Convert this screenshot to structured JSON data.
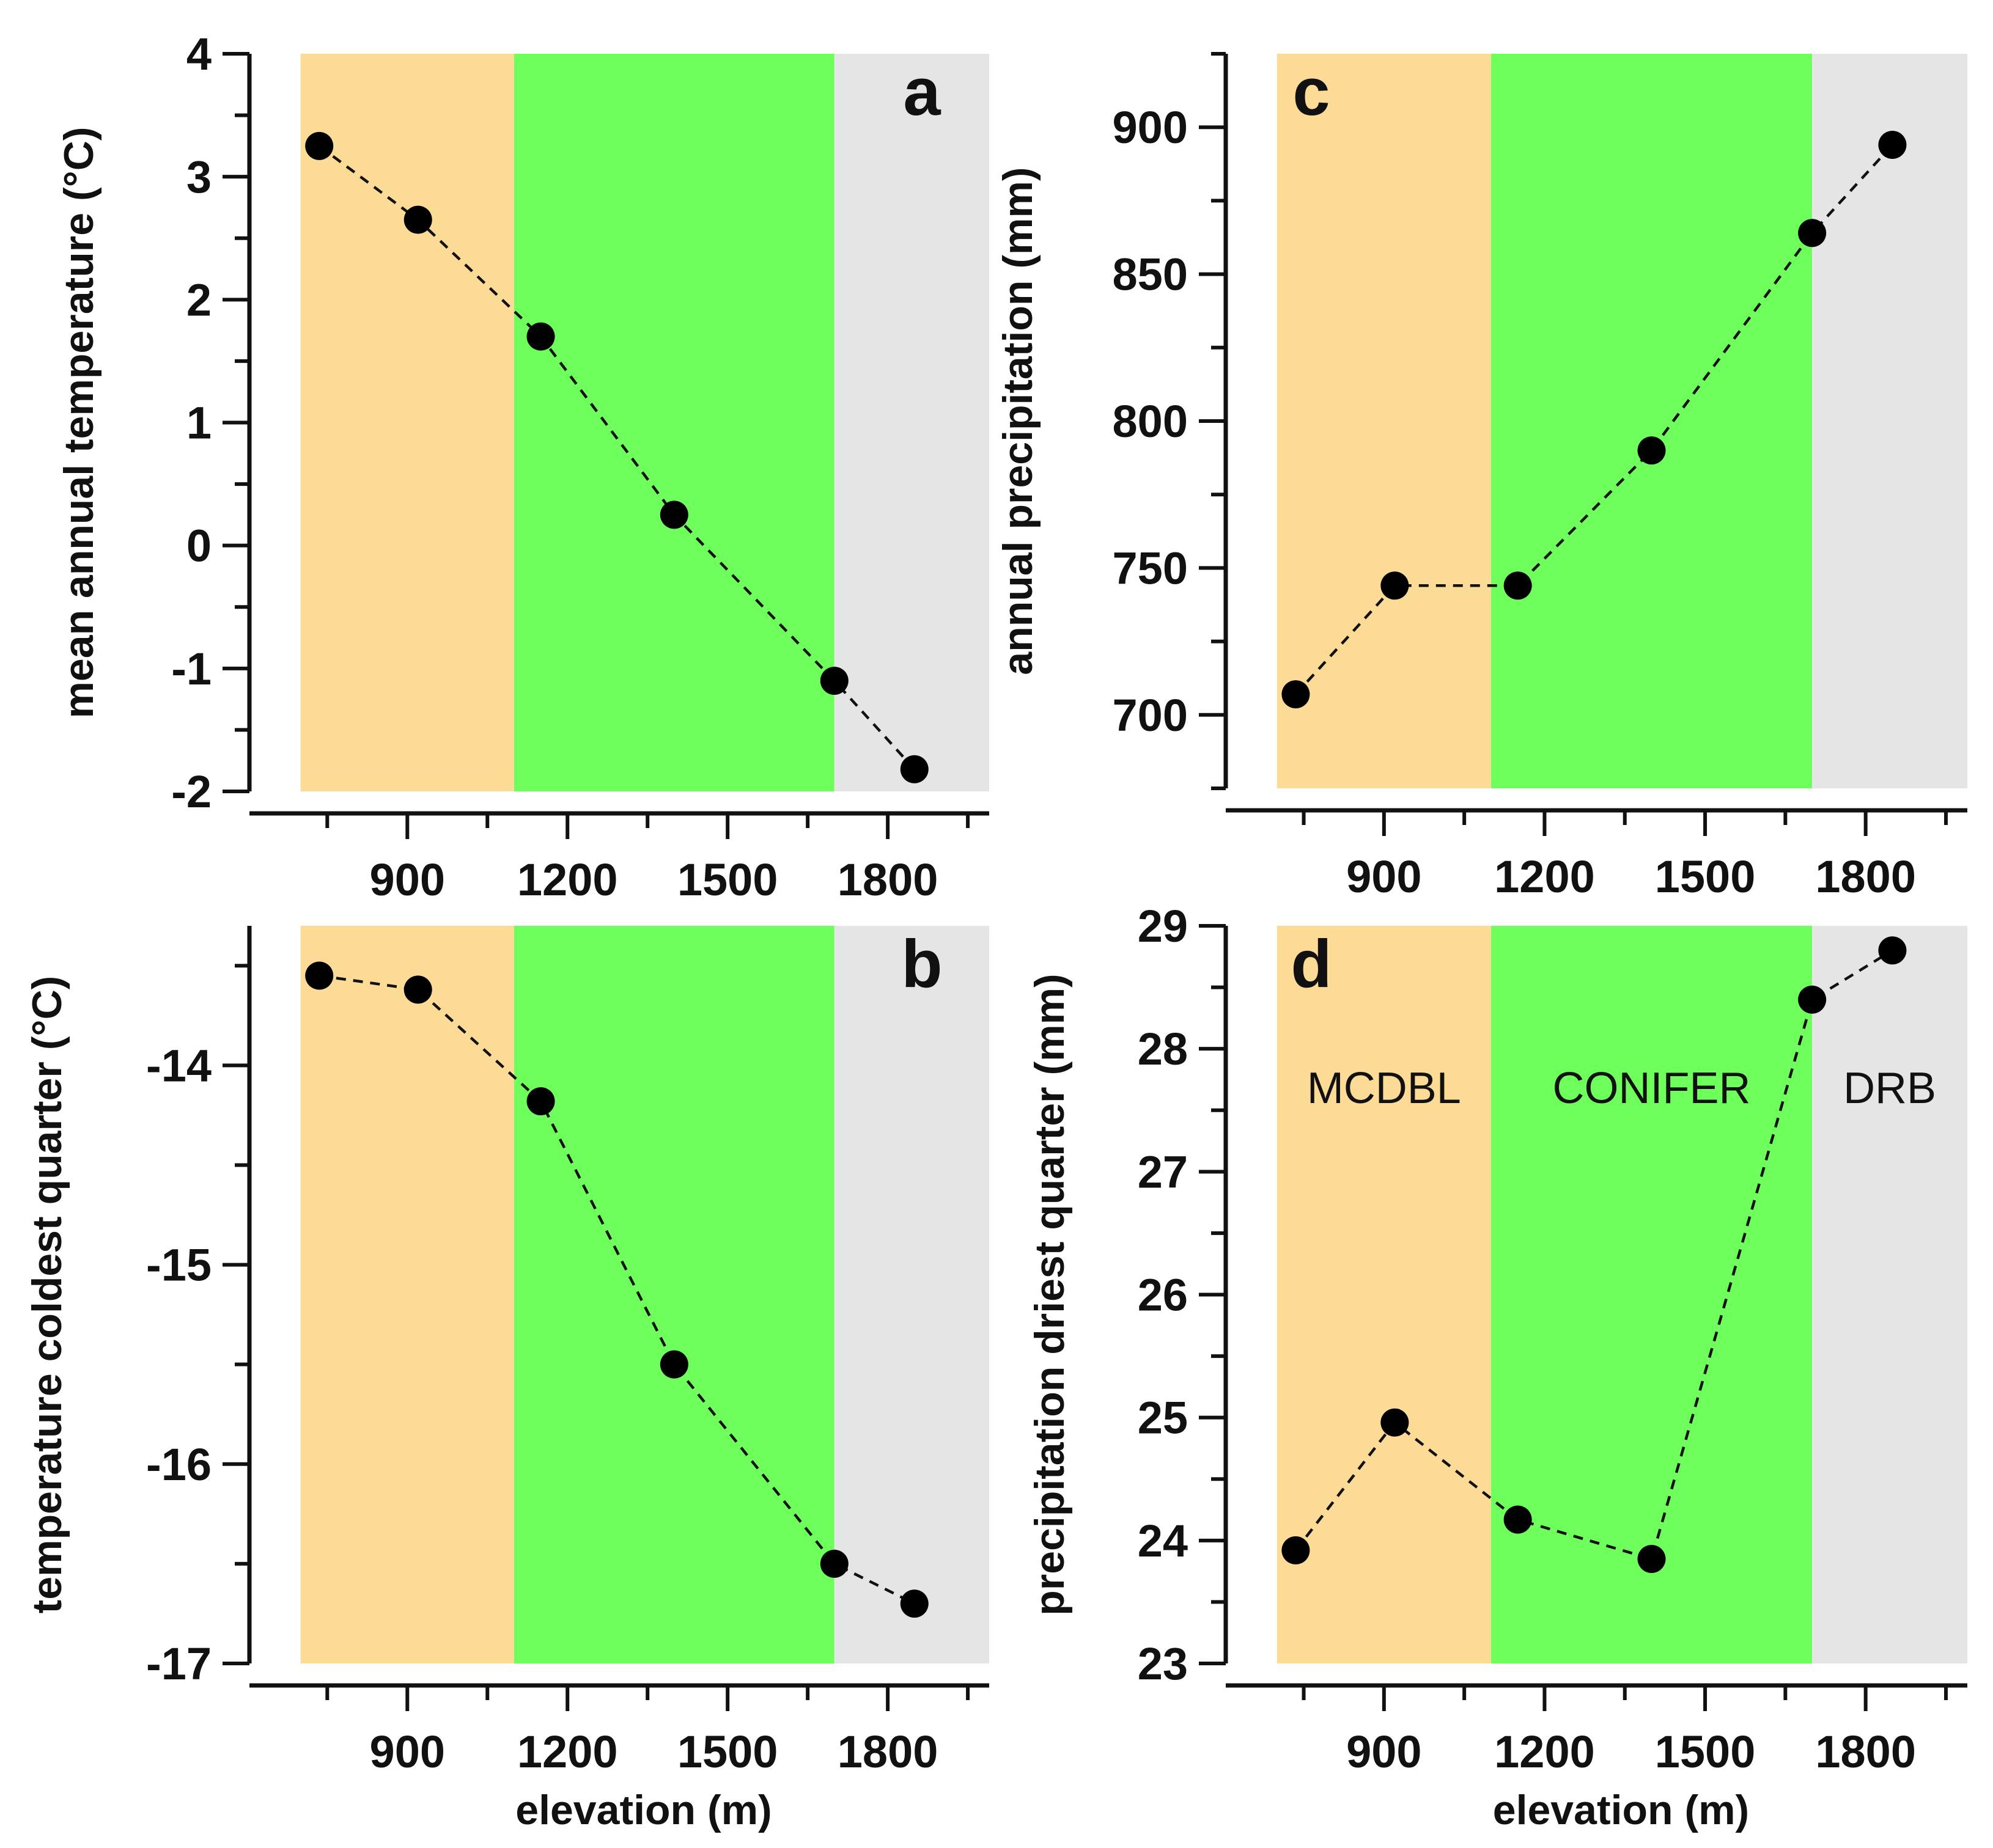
{
  "zone_colors": {
    "MCDBL": "#fcdb96",
    "CONIFER": "#6eff5c",
    "DRB": "#e5e5e5"
  },
  "zone_labels": [
    "MCDBL",
    "CONIFER",
    "DRB"
  ],
  "x_ticks": [
    "900",
    "1200",
    "1500",
    "1800"
  ],
  "chart_data": [
    {
      "id": "a",
      "type": "line",
      "panel_label": "a",
      "title": "",
      "xlabel": "",
      "ylabel": "mean annual temperature (°C)",
      "xlim": [
        650,
        1990
      ],
      "ylim": [
        -2,
        4
      ],
      "x_ticks": [
        900,
        1200,
        1500,
        1800
      ],
      "y_ticks": [
        -2,
        -1,
        0,
        1,
        2,
        3,
        4
      ],
      "y_tick_labels": [
        "-2",
        "-1",
        "0",
        "1",
        "2",
        "3",
        "4"
      ],
      "y_minor_step": 0.5,
      "zones": [
        {
          "name": "MCDBL",
          "from": 700,
          "to": 1100
        },
        {
          "name": "CONIFER",
          "from": 1100,
          "to": 1700
        },
        {
          "name": "DRB",
          "from": 1700,
          "to": 1990
        }
      ],
      "x": [
        735,
        920,
        1150,
        1400,
        1700,
        1850
      ],
      "y": [
        3.25,
        2.65,
        1.7,
        0.25,
        -1.1,
        -1.82
      ]
    },
    {
      "id": "b",
      "type": "line",
      "panel_label": "b",
      "title": "",
      "xlabel": "elevation (m)",
      "ylabel": "temperature coldest quarter (°C)",
      "xlim": [
        650,
        1990
      ],
      "ylim": [
        -17,
        -13.3
      ],
      "x_ticks": [
        900,
        1200,
        1500,
        1800
      ],
      "y_ticks": [
        -17,
        -16,
        -15,
        -14
      ],
      "y_tick_labels": [
        "-17",
        "-16",
        "-15",
        "-14"
      ],
      "y_minor_step": 0.5,
      "zones": [
        {
          "name": "MCDBL",
          "from": 700,
          "to": 1100
        },
        {
          "name": "CONIFER",
          "from": 1100,
          "to": 1700
        },
        {
          "name": "DRB",
          "from": 1700,
          "to": 1990
        }
      ],
      "x": [
        735,
        920,
        1150,
        1400,
        1700,
        1850
      ],
      "y": [
        -13.55,
        -13.62,
        -14.18,
        -15.5,
        -16.5,
        -16.7
      ]
    },
    {
      "id": "c",
      "type": "line",
      "panel_label": "c",
      "title": "",
      "xlabel": "",
      "ylabel": "annual precipitation (mm)",
      "xlim": [
        650,
        1990
      ],
      "ylim": [
        675,
        925
      ],
      "x_ticks": [
        900,
        1200,
        1500,
        1800
      ],
      "y_ticks": [
        700,
        750,
        800,
        850,
        900
      ],
      "y_tick_labels": [
        "700",
        "750",
        "800",
        "850",
        "900"
      ],
      "y_minor_step": 25,
      "zones": [
        {
          "name": "MCDBL",
          "from": 700,
          "to": 1100
        },
        {
          "name": "CONIFER",
          "from": 1100,
          "to": 1700
        },
        {
          "name": "DRB",
          "from": 1700,
          "to": 1990
        }
      ],
      "x": [
        735,
        920,
        1150,
        1400,
        1700,
        1850
      ],
      "y": [
        707,
        744,
        744,
        790,
        864,
        894
      ]
    },
    {
      "id": "d",
      "type": "line",
      "panel_label": "d",
      "title": "",
      "xlabel": "elevation (m)",
      "ylabel": "precipitation driest quarter (mm)",
      "xlim": [
        650,
        1990
      ],
      "ylim": [
        23,
        29
      ],
      "x_ticks": [
        900,
        1200,
        1500,
        1800
      ],
      "y_ticks": [
        23,
        24,
        25,
        26,
        27,
        28,
        29
      ],
      "y_tick_labels": [
        "23",
        "24",
        "25",
        "26",
        "27",
        "28",
        "29"
      ],
      "y_minor_step": 0.5,
      "zones": [
        {
          "name": "MCDBL",
          "from": 700,
          "to": 1100
        },
        {
          "name": "CONIFER",
          "from": 1100,
          "to": 1700
        },
        {
          "name": "DRB",
          "from": 1700,
          "to": 1990
        }
      ],
      "x": [
        735,
        920,
        1150,
        1400,
        1700,
        1850
      ],
      "y": [
        23.92,
        24.96,
        24.17,
        23.85,
        28.4,
        28.8
      ],
      "annotations": [
        "MCDBL",
        "CONIFER",
        "DRB"
      ]
    }
  ]
}
